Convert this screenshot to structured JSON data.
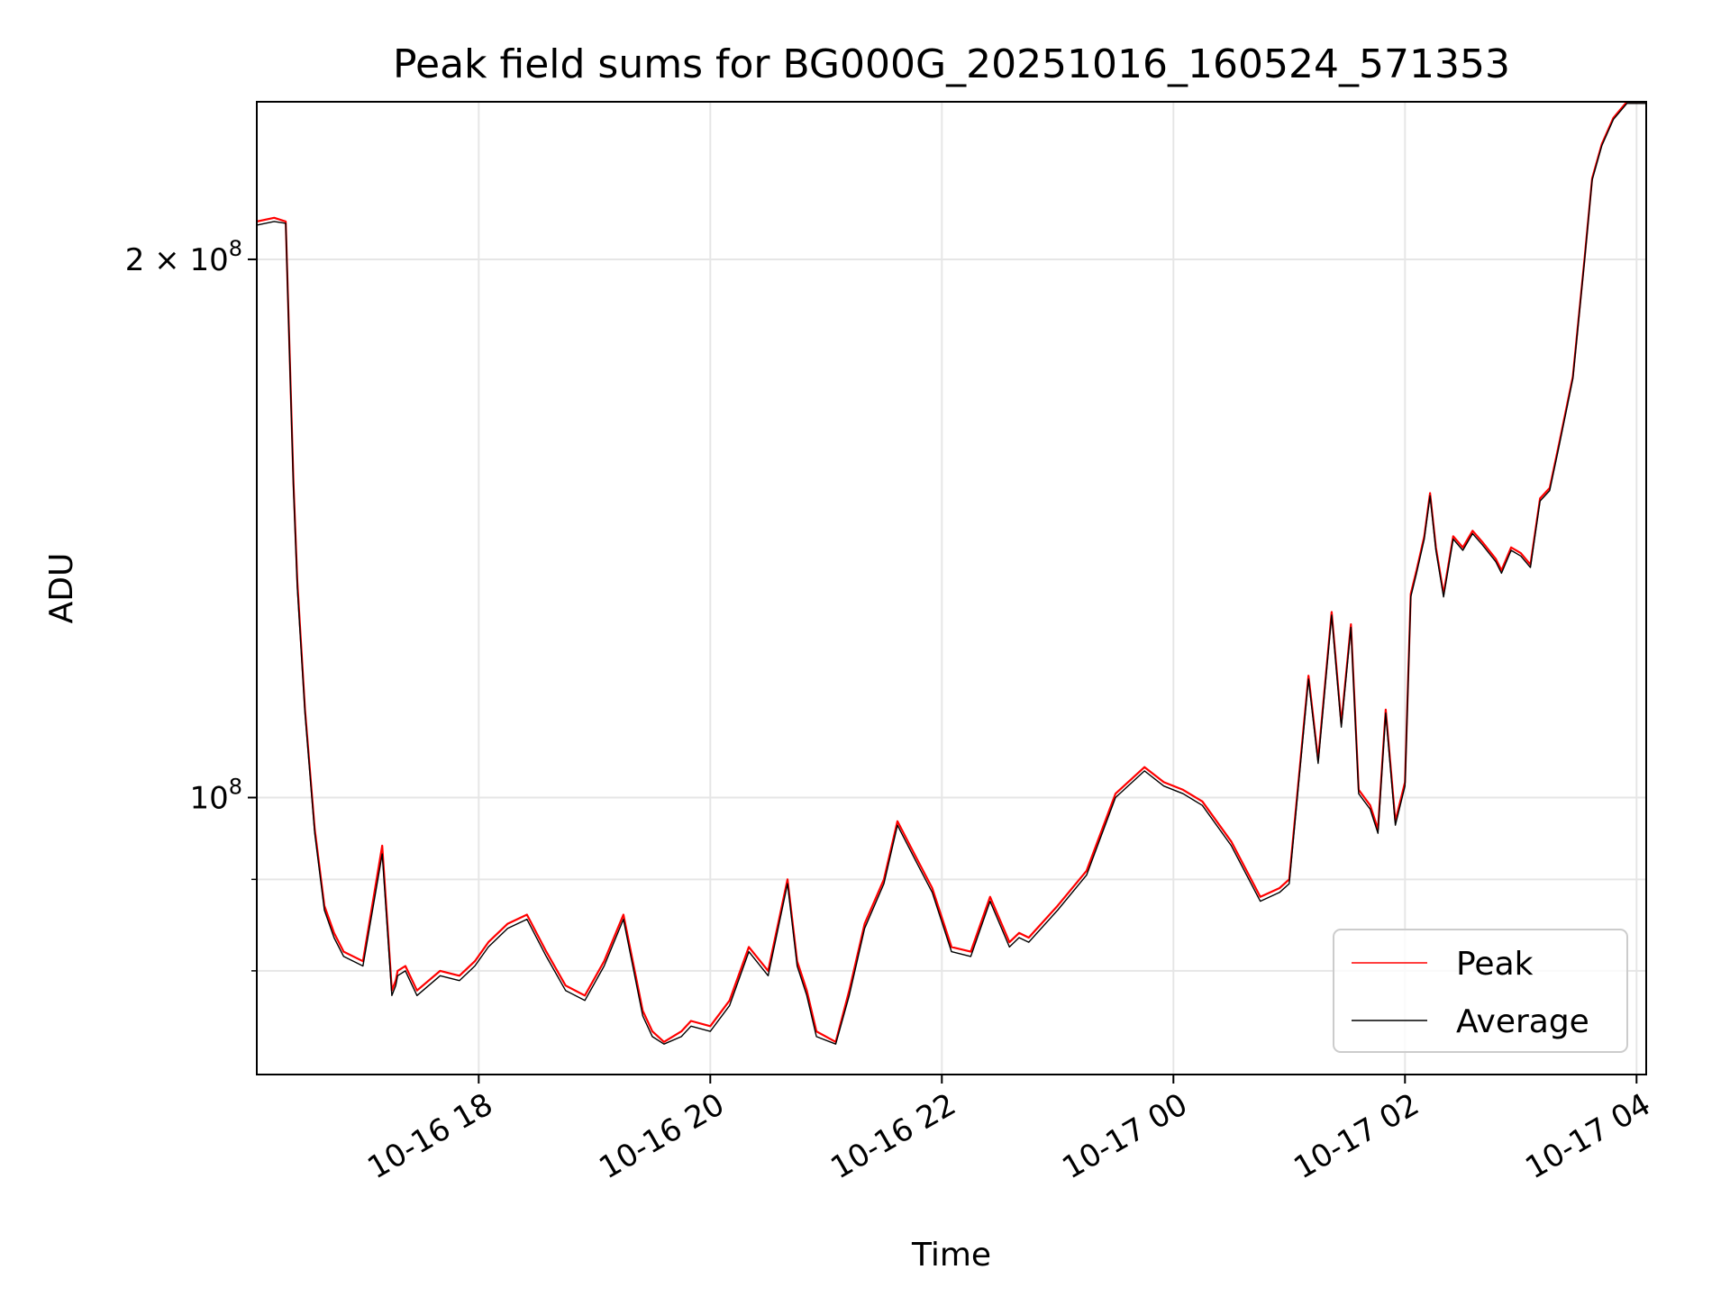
{
  "chart_data": {
    "type": "line",
    "title": "Peak field sums for BG000G_20251016_160524_571353",
    "xlabel": "Time",
    "ylabel": "ADU",
    "yscale": "log",
    "xlim": [
      "2025-10-16 16:05",
      "2025-10-17 04:05"
    ],
    "ylim": [
      70000000,
      245000000
    ],
    "xticks": [
      {
        "value": "2025-10-16 18:00",
        "label": "10-16 18"
      },
      {
        "value": "2025-10-16 20:00",
        "label": "10-16 20"
      },
      {
        "value": "2025-10-16 22:00",
        "label": "10-16 22"
      },
      {
        "value": "2025-10-17 00:00",
        "label": "10-17 00"
      },
      {
        "value": "2025-10-17 02:00",
        "label": "10-17 02"
      },
      {
        "value": "2025-10-17 04:00",
        "label": "10-17 04"
      }
    ],
    "yticks_major": [
      {
        "value": 100000000,
        "label": "10",
        "exp": "8"
      },
      {
        "value": 200000000,
        "label": "2 × 10",
        "exp": "8"
      }
    ],
    "yticks_minor": [
      80000000,
      90000000
    ],
    "grid": true,
    "legend_position": "lower-right",
    "colors": {
      "peak": "#ff0000",
      "average": "#000000",
      "grid": "#e6e6e6"
    },
    "x": [
      "2025-10-16 16:05",
      "2025-10-16 16:14",
      "2025-10-16 16:20",
      "2025-10-16 16:24",
      "2025-10-16 16:26",
      "2025-10-16 16:30",
      "2025-10-16 16:35",
      "2025-10-16 16:40",
      "2025-10-16 16:45",
      "2025-10-16 16:50",
      "2025-10-16 17:00",
      "2025-10-16 17:10",
      "2025-10-16 17:15",
      "2025-10-16 17:17",
      "2025-10-16 17:18",
      "2025-10-16 17:22",
      "2025-10-16 17:28",
      "2025-10-16 17:40",
      "2025-10-16 17:50",
      "2025-10-16 17:58",
      "2025-10-16 18:05",
      "2025-10-16 18:15",
      "2025-10-16 18:25",
      "2025-10-16 18:35",
      "2025-10-16 18:45",
      "2025-10-16 18:55",
      "2025-10-16 19:05",
      "2025-10-16 19:15",
      "2025-10-16 19:25",
      "2025-10-16 19:30",
      "2025-10-16 19:36",
      "2025-10-16 19:45",
      "2025-10-16 19:50",
      "2025-10-16 20:00",
      "2025-10-16 20:10",
      "2025-10-16 20:20",
      "2025-10-16 20:30",
      "2025-10-16 20:40",
      "2025-10-16 20:45",
      "2025-10-16 20:50",
      "2025-10-16 20:55",
      "2025-10-16 21:05",
      "2025-10-16 21:12",
      "2025-10-16 21:20",
      "2025-10-16 21:30",
      "2025-10-16 21:37",
      "2025-10-16 21:48",
      "2025-10-16 21:55",
      "2025-10-16 22:05",
      "2025-10-16 22:15",
      "2025-10-16 22:25",
      "2025-10-16 22:35",
      "2025-10-16 22:40",
      "2025-10-16 22:45",
      "2025-10-16 23:00",
      "2025-10-16 23:15",
      "2025-10-16 23:30",
      "2025-10-16 23:45",
      "2025-10-16 23:55",
      "2025-10-17 00:05",
      "2025-10-17 00:15",
      "2025-10-17 00:30",
      "2025-10-17 00:45",
      "2025-10-17 00:55",
      "2025-10-17 01:00",
      "2025-10-17 01:10",
      "2025-10-17 01:15",
      "2025-10-17 01:22",
      "2025-10-17 01:27",
      "2025-10-17 01:32",
      "2025-10-17 01:36",
      "2025-10-17 01:42",
      "2025-10-17 01:46",
      "2025-10-17 01:50",
      "2025-10-17 01:55",
      "2025-10-17 02:00",
      "2025-10-17 02:03",
      "2025-10-17 02:06",
      "2025-10-17 02:10",
      "2025-10-17 02:13",
      "2025-10-17 02:16",
      "2025-10-17 02:20",
      "2025-10-17 02:25",
      "2025-10-17 02:30",
      "2025-10-17 02:35",
      "2025-10-17 02:40",
      "2025-10-17 02:47",
      "2025-10-17 02:50",
      "2025-10-17 02:55",
      "2025-10-17 03:00",
      "2025-10-17 03:05",
      "2025-10-17 03:10",
      "2025-10-17 03:15",
      "2025-10-17 03:20",
      "2025-10-17 03:27",
      "2025-10-17 03:33",
      "2025-10-17 03:37",
      "2025-10-17 03:42",
      "2025-10-17 03:48",
      "2025-10-17 03:55",
      "2025-10-17 03:58",
      "2025-10-17 04:00",
      "2025-10-17 04:03",
      "2025-10-17 04:05"
    ],
    "series": [
      {
        "name": "Peak",
        "color": "#ff0000",
        "values": [
          210000000,
          211000000,
          210000000,
          150000000,
          132000000,
          112000000,
          96000000,
          87000000,
          84000000,
          82000000,
          81000000,
          94000000,
          78000000,
          79000000,
          80000000,
          80500000,
          78000000,
          80000000,
          79500000,
          81000000,
          83000000,
          85000000,
          86000000,
          82000000,
          78500000,
          77500000,
          81000000,
          86000000,
          76000000,
          74000000,
          73000000,
          74000000,
          75000000,
          74500000,
          77000000,
          82500000,
          80000000,
          90000000,
          81000000,
          78000000,
          74000000,
          73000000,
          78000000,
          85000000,
          90000000,
          97000000,
          92000000,
          89000000,
          82500000,
          82000000,
          88000000,
          83000000,
          84000000,
          83500000,
          87000000,
          91000000,
          100500000,
          104000000,
          102000000,
          101000000,
          99500000,
          94500000,
          88000000,
          89000000,
          90000000,
          117000000,
          105000000,
          127000000,
          110000000,
          125000000,
          101000000,
          99000000,
          96000000,
          112000000,
          97000000,
          102000000,
          130000000,
          134000000,
          140000000,
          148000000,
          138000000,
          130000000,
          140000000,
          138000000,
          141000000,
          139000000,
          136000000,
          134000000,
          138000000,
          137000000,
          135000000,
          147000000,
          149000000,
          158000000,
          172000000,
          200000000,
          222000000,
          232000000,
          240000000,
          245000000,
          245000000,
          245000000,
          245000000,
          245000000
        ]
      },
      {
        "name": "Average",
        "color": "#000000",
        "values": [
          209000000,
          210000000,
          209500000,
          149000000,
          131000000,
          111500000,
          95500000,
          86500000,
          83500000,
          81500000,
          80500000,
          93000000,
          77500000,
          78500000,
          79500000,
          80000000,
          77500000,
          79500000,
          79000000,
          80500000,
          82500000,
          84500000,
          85500000,
          81500000,
          78000000,
          77000000,
          80500000,
          85500000,
          75500000,
          73500000,
          72800000,
          73500000,
          74500000,
          74000000,
          76500000,
          82000000,
          79500000,
          89500000,
          80500000,
          77500000,
          73500000,
          72800000,
          77500000,
          84500000,
          89500000,
          96500000,
          91500000,
          88500000,
          82000000,
          81500000,
          87500000,
          82500000,
          83500000,
          83000000,
          86500000,
          90500000,
          100000000,
          103500000,
          101500000,
          100500000,
          99000000,
          94000000,
          87500000,
          88500000,
          89500000,
          116500000,
          104500000,
          126500000,
          109500000,
          124500000,
          100500000,
          98500000,
          95500000,
          111500000,
          96500000,
          101500000,
          129500000,
          133500000,
          139500000,
          147500000,
          137500000,
          129500000,
          139500000,
          137500000,
          140500000,
          138500000,
          135500000,
          133500000,
          137500000,
          136500000,
          134500000,
          146500000,
          148500000,
          157500000,
          171500000,
          199500000,
          221500000,
          231500000,
          239500000,
          244500000,
          244500000,
          244500000,
          244500000,
          244500000
        ]
      }
    ]
  }
}
